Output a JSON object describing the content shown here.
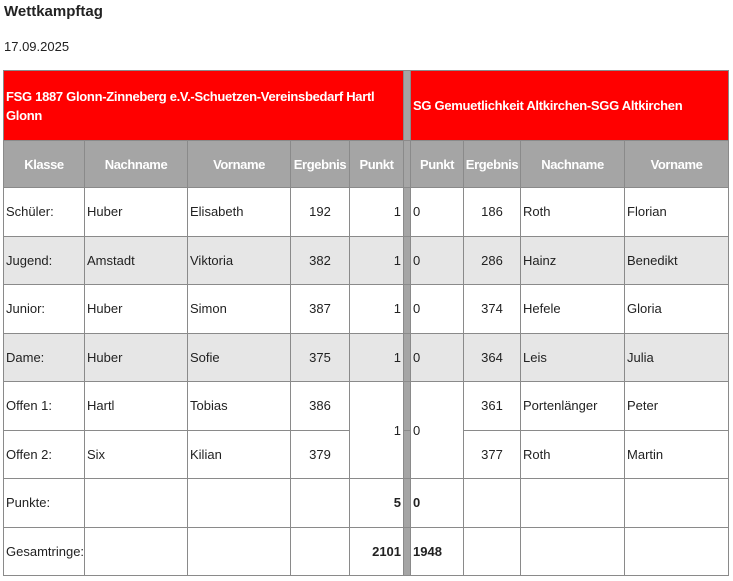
{
  "page": {
    "title": "Wettkampftag",
    "date": "17.09.2025"
  },
  "teams": {
    "home": "FSG 1887 Glonn-Zinneberg e.V.-Schuetzen-Vereinsbedarf Hartl Glonn",
    "away": "SG Gemuetlichkeit Altkirchen-SGG Altkirchen"
  },
  "columns": {
    "home": [
      "Klasse",
      "Nachname",
      "Vorname",
      "Ergebnis",
      "Punkt"
    ],
    "away": [
      "Punkt",
      "Ergebnis",
      "Nachname",
      "Vorname"
    ]
  },
  "colors": {
    "header_red": "#ff0000",
    "header_gray": "#a5a5a5",
    "alt_row": "#e6e6e6"
  },
  "rows": [
    {
      "klasse": "Schüler:",
      "home_nachname": "Huber",
      "home_vorname": "Elisabeth",
      "home_ergebnis": "192",
      "home_punkt": "1",
      "away_punkt": "0",
      "away_ergebnis": "186",
      "away_nachname": "Roth",
      "away_vorname": "Florian"
    },
    {
      "klasse": "Jugend:",
      "home_nachname": "Amstadt",
      "home_vorname": "Viktoria",
      "home_ergebnis": "382",
      "home_punkt": "1",
      "away_punkt": "0",
      "away_ergebnis": "286",
      "away_nachname": "Hainz",
      "away_vorname": "Benedikt"
    },
    {
      "klasse": "Junior:",
      "home_nachname": "Huber",
      "home_vorname": "Simon",
      "home_ergebnis": "387",
      "home_punkt": "1",
      "away_punkt": "0",
      "away_ergebnis": "374",
      "away_nachname": "Hefele",
      "away_vorname": "Gloria"
    },
    {
      "klasse": "Dame:",
      "home_nachname": "Huber",
      "home_vorname": "Sofie",
      "home_ergebnis": "375",
      "home_punkt": "1",
      "away_punkt": "0",
      "away_ergebnis": "364",
      "away_nachname": "Leis",
      "away_vorname": "Julia"
    },
    {
      "klasse": "Offen 1:",
      "home_nachname": "Hartl",
      "home_vorname": "Tobias",
      "home_ergebnis": "386",
      "home_punkt": "1",
      "away_punkt": "0",
      "away_ergebnis": "361",
      "away_nachname": "Portenlänger",
      "away_vorname": "Peter"
    },
    {
      "klasse": "Offen 2:",
      "home_nachname": "Six",
      "home_vorname": "Kilian",
      "home_ergebnis": "379",
      "away_ergebnis": "377",
      "away_nachname": "Roth",
      "away_vorname": "Martin"
    }
  ],
  "totals": {
    "punkte_label": "Punkte:",
    "home_punkte": "5",
    "away_punkte": "0",
    "ringe_label": "Gesamtringe:",
    "home_ringe": "2101",
    "away_ringe": "1948"
  }
}
